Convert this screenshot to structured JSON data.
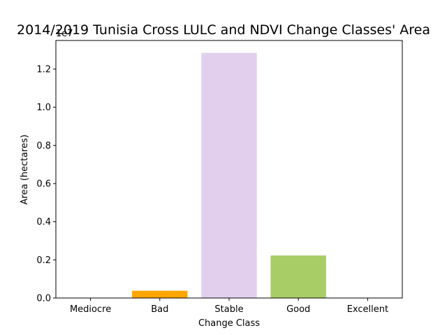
{
  "chart_data": {
    "type": "bar",
    "title": "2014/2019 Tunisia Cross LULC and NDVI Change Classes' Area",
    "xlabel": "Change Class",
    "ylabel": "Area (hectares)",
    "y_offset_label": "1e7",
    "categories": [
      "Mediocre",
      "Bad",
      "Stable",
      "Good",
      "Excellent"
    ],
    "values": [
      0,
      380000,
      12850000,
      2230000,
      0
    ],
    "colors": [
      "#cfcfcf",
      "#ffa500",
      "#e2cfee",
      "#a8cd66",
      "#7f9fff"
    ],
    "ylim": [
      0,
      13500000
    ],
    "yticks": [
      0,
      2000000,
      4000000,
      6000000,
      8000000,
      10000000,
      12000000
    ],
    "ytick_labels": [
      "0.0",
      "0.2",
      "0.4",
      "0.6",
      "0.8",
      "1.0",
      "1.2"
    ],
    "grid": false,
    "legend": "none"
  }
}
